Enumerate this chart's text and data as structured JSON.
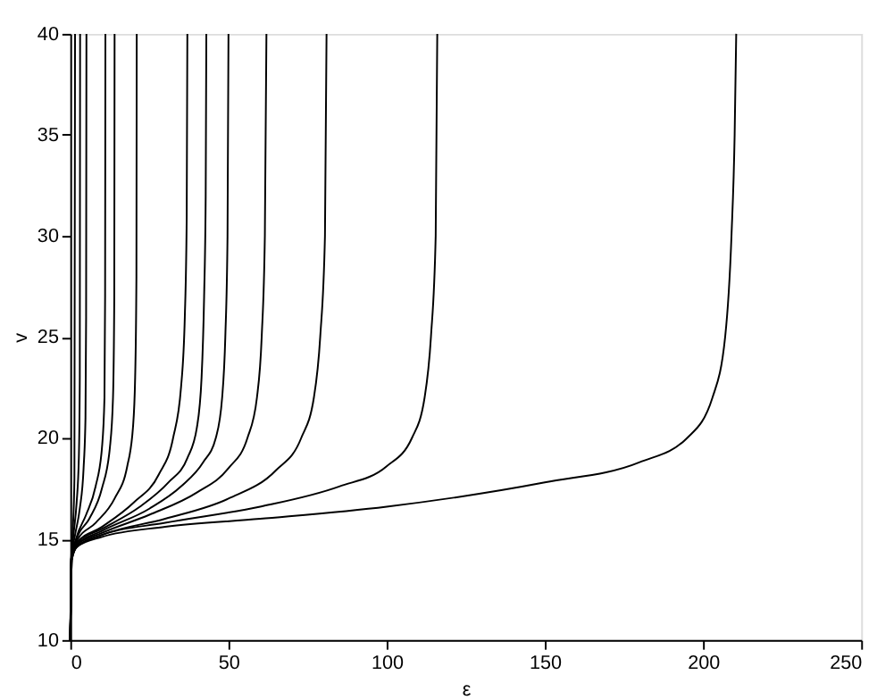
{
  "chart_data": {
    "type": "line",
    "xlabel": "ε",
    "ylabel": "v",
    "xlim": [
      0,
      250
    ],
    "ylim": [
      10,
      40
    ],
    "xticks": [
      0,
      50,
      100,
      150,
      200,
      250
    ],
    "yticks": [
      10,
      15,
      20,
      25,
      30,
      35,
      40
    ],
    "grid": false,
    "legend": false,
    "marker": "none",
    "line_style": "solid",
    "series": [
      {
        "color": "#000000",
        "x": [
          0,
          0.5,
          2,
          10,
          30,
          60,
          100,
          150,
          180,
          195,
          203,
          207,
          209,
          210,
          210.5
        ],
        "values": [
          10,
          14,
          14.6,
          15.1,
          15.6,
          16.0,
          16.6,
          17.8,
          18.8,
          20,
          22,
          25,
          30,
          35,
          40
        ]
      },
      {
        "color": "#000000",
        "x": [
          0,
          0.5,
          2,
          10,
          30,
          60,
          85,
          100,
          108,
          112,
          114,
          115.5,
          116
        ],
        "values": [
          10,
          14,
          14.6,
          15.2,
          15.8,
          16.6,
          17.6,
          18.6,
          20,
          22,
          25,
          30,
          40
        ]
      },
      {
        "color": "#000000",
        "x": [
          0,
          0.5,
          2,
          10,
          30,
          50,
          65,
          73,
          77,
          79,
          80.5,
          81
        ],
        "values": [
          10,
          14,
          14.6,
          15.2,
          16,
          17,
          18.4,
          20,
          22,
          25,
          30,
          40
        ]
      },
      {
        "color": "#000000",
        "x": [
          0,
          0.4,
          2,
          10,
          25,
          40,
          50,
          56,
          59,
          60.5,
          61.5,
          62
        ],
        "values": [
          10,
          14,
          14.7,
          15.3,
          16.2,
          17.3,
          18.5,
          20,
          22,
          25,
          30,
          40
        ]
      },
      {
        "color": "#000000",
        "x": [
          0,
          0.4,
          2,
          10,
          25,
          35,
          42,
          46,
          48,
          49,
          49.7,
          50
        ],
        "values": [
          10,
          14,
          14.7,
          15.4,
          16.5,
          17.6,
          18.8,
          20,
          22,
          25,
          30,
          40
        ]
      },
      {
        "color": "#000000",
        "x": [
          0,
          0.4,
          2,
          10,
          22,
          31,
          37,
          40,
          41.5,
          42.3,
          42.8,
          43
        ],
        "values": [
          10,
          14,
          14.8,
          15.5,
          16.6,
          17.8,
          19,
          20.5,
          23,
          27,
          32,
          40
        ]
      },
      {
        "color": "#000000",
        "x": [
          0,
          0.4,
          2,
          10,
          20,
          28,
          32.5,
          35,
          36.2,
          36.8,
          37
        ],
        "values": [
          10,
          14,
          14.8,
          15.6,
          16.8,
          18.2,
          20,
          22.5,
          26,
          31,
          40
        ]
      },
      {
        "color": "#000000",
        "x": [
          0,
          0.4,
          2,
          8,
          14,
          18,
          19.8,
          20.5,
          20.9,
          21
        ],
        "values": [
          10,
          14,
          14.9,
          15.8,
          17,
          18.6,
          20.5,
          23,
          28,
          40
        ]
      },
      {
        "color": "#000000",
        "x": [
          0,
          0.3,
          2,
          6,
          10,
          12.5,
          13.5,
          13.9,
          14
        ],
        "values": [
          10,
          14,
          15,
          16,
          17.5,
          19.5,
          22,
          27,
          40
        ]
      },
      {
        "color": "#000000",
        "x": [
          0,
          0.3,
          2,
          5,
          8,
          10,
          10.8,
          11,
          11.1
        ],
        "values": [
          10,
          14,
          15.1,
          16.2,
          17.6,
          19.5,
          22,
          27,
          40
        ]
      },
      {
        "color": "#000000",
        "x": [
          0,
          0.3,
          1.5,
          3,
          4.2,
          4.8,
          5,
          5.1
        ],
        "values": [
          10,
          14,
          15.2,
          16.5,
          18.5,
          21,
          26,
          40
        ]
      },
      {
        "color": "#000000",
        "x": [
          0,
          0.3,
          1,
          2,
          2.7,
          3,
          3.1
        ],
        "values": [
          10,
          14,
          15.2,
          16.8,
          19,
          23,
          40
        ]
      },
      {
        "color": "#000000",
        "x": [
          0,
          0.3,
          0.8,
          1.3,
          1.5
        ],
        "values": [
          10,
          14,
          15.5,
          18,
          40
        ]
      }
    ]
  }
}
